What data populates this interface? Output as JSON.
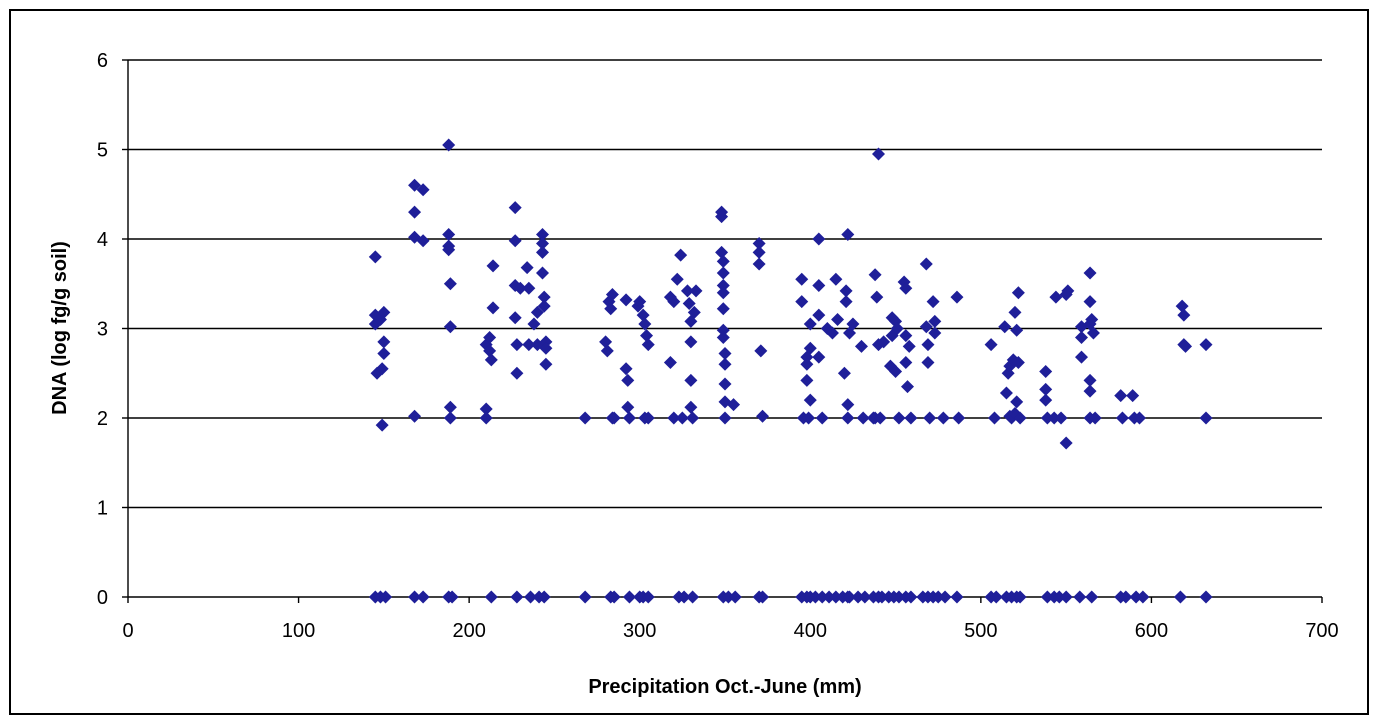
{
  "chart_data": {
    "type": "scatter",
    "title": "",
    "xlabel": "Precipitation Oct.-June (mm)",
    "ylabel": "DNA (log fg/g soil)",
    "xlim": [
      0,
      700
    ],
    "ylim": [
      0,
      6
    ],
    "x_ticks": [
      0,
      100,
      200,
      300,
      400,
      500,
      600,
      700
    ],
    "y_ticks": [
      0,
      1,
      2,
      3,
      4,
      5,
      6
    ],
    "grid": "horizontal",
    "legend": "none",
    "marker": "diamond",
    "marker_color": "#1f1f99",
    "series": [
      {
        "points": [
          [
            145,
            3.8
          ],
          [
            145,
            3.15
          ],
          [
            145,
            3.05
          ],
          [
            146,
            2.5
          ],
          [
            148,
            3.1
          ],
          [
            149,
            2.55
          ],
          [
            149,
            1.92
          ],
          [
            150,
            2.85
          ],
          [
            150,
            2.72
          ],
          [
            150,
            3.18
          ],
          [
            168,
            4.6
          ],
          [
            168,
            4.3
          ],
          [
            168,
            4.02
          ],
          [
            168,
            2.02
          ],
          [
            173,
            4.55
          ],
          [
            173,
            3.98
          ],
          [
            188,
            5.05
          ],
          [
            188,
            4.05
          ],
          [
            188,
            3.92
          ],
          [
            188,
            3.88
          ],
          [
            189,
            3.5
          ],
          [
            189,
            3.02
          ],
          [
            189,
            2.12
          ],
          [
            189,
            2.0
          ],
          [
            210,
            2.82
          ],
          [
            210,
            2.1
          ],
          [
            210,
            2.0
          ],
          [
            212,
            2.75
          ],
          [
            212,
            2.9
          ],
          [
            213,
            2.65
          ],
          [
            214,
            3.7
          ],
          [
            214,
            3.23
          ],
          [
            227,
            4.35
          ],
          [
            227,
            3.98
          ],
          [
            227,
            3.48
          ],
          [
            227,
            3.12
          ],
          [
            228,
            2.82
          ],
          [
            228,
            2.5
          ],
          [
            230,
            3.45
          ],
          [
            234,
            3.68
          ],
          [
            235,
            3.45
          ],
          [
            235,
            2.82
          ],
          [
            238,
            3.05
          ],
          [
            240,
            2.82
          ],
          [
            240,
            3.18
          ],
          [
            243,
            4.05
          ],
          [
            243,
            3.95
          ],
          [
            243,
            3.85
          ],
          [
            243,
            3.62
          ],
          [
            244,
            3.35
          ],
          [
            244,
            3.25
          ],
          [
            245,
            2.85
          ],
          [
            245,
            2.78
          ],
          [
            245,
            2.6
          ],
          [
            268,
            2.0
          ],
          [
            280,
            2.85
          ],
          [
            281,
            2.75
          ],
          [
            282,
            3.3
          ],
          [
            283,
            3.22
          ],
          [
            284,
            3.38
          ],
          [
            284,
            2.0
          ],
          [
            285,
            2.0
          ],
          [
            292,
            3.32
          ],
          [
            292,
            2.55
          ],
          [
            293,
            2.42
          ],
          [
            293,
            2.12
          ],
          [
            294,
            2.0
          ],
          [
            299,
            3.25
          ],
          [
            300,
            3.3
          ],
          [
            302,
            3.15
          ],
          [
            303,
            3.05
          ],
          [
            303,
            2.0
          ],
          [
            304,
            2.92
          ],
          [
            305,
            2.82
          ],
          [
            305,
            2.0
          ],
          [
            318,
            2.62
          ],
          [
            318,
            3.35
          ],
          [
            320,
            3.3
          ],
          [
            320,
            2.0
          ],
          [
            322,
            3.55
          ],
          [
            324,
            3.82
          ],
          [
            325,
            2.0
          ],
          [
            328,
            3.42
          ],
          [
            329,
            3.28
          ],
          [
            330,
            3.08
          ],
          [
            330,
            2.85
          ],
          [
            330,
            2.42
          ],
          [
            330,
            2.12
          ],
          [
            331,
            2.0
          ],
          [
            332,
            3.18
          ],
          [
            333,
            3.42
          ],
          [
            348,
            4.3
          ],
          [
            348,
            4.25
          ],
          [
            348,
            3.85
          ],
          [
            349,
            3.75
          ],
          [
            349,
            3.62
          ],
          [
            349,
            3.48
          ],
          [
            349,
            3.4
          ],
          [
            349,
            3.22
          ],
          [
            349,
            2.98
          ],
          [
            349,
            2.9
          ],
          [
            350,
            2.72
          ],
          [
            350,
            2.6
          ],
          [
            350,
            2.38
          ],
          [
            350,
            2.18
          ],
          [
            350,
            2.0
          ],
          [
            355,
            2.15
          ],
          [
            370,
            3.95
          ],
          [
            370,
            3.85
          ],
          [
            370,
            3.72
          ],
          [
            371,
            2.75
          ],
          [
            372,
            2.02
          ],
          [
            395,
            3.55
          ],
          [
            395,
            3.3
          ],
          [
            396,
            2.0
          ],
          [
            398,
            2.68
          ],
          [
            398,
            2.6
          ],
          [
            398,
            2.42
          ],
          [
            399,
            2.0
          ],
          [
            400,
            2.78
          ],
          [
            400,
            3.05
          ],
          [
            400,
            2.2
          ],
          [
            405,
            4.0
          ],
          [
            405,
            3.48
          ],
          [
            405,
            3.15
          ],
          [
            405,
            2.68
          ],
          [
            407,
            2.0
          ],
          [
            410,
            3.0
          ],
          [
            413,
            2.95
          ],
          [
            415,
            3.55
          ],
          [
            416,
            3.1
          ],
          [
            420,
            2.5
          ],
          [
            421,
            3.42
          ],
          [
            421,
            3.3
          ],
          [
            422,
            4.05
          ],
          [
            422,
            2.15
          ],
          [
            422,
            2.0
          ],
          [
            423,
            2.95
          ],
          [
            425,
            3.05
          ],
          [
            430,
            2.8
          ],
          [
            431,
            2.0
          ],
          [
            437,
            2.0
          ],
          [
            438,
            2.0
          ],
          [
            438,
            3.6
          ],
          [
            439,
            3.35
          ],
          [
            440,
            4.95
          ],
          [
            440,
            2.82
          ],
          [
            441,
            2.0
          ],
          [
            443,
            2.85
          ],
          [
            447,
            2.58
          ],
          [
            448,
            3.12
          ],
          [
            448,
            2.92
          ],
          [
            450,
            3.08
          ],
          [
            450,
            2.52
          ],
          [
            451,
            3.0
          ],
          [
            452,
            2.0
          ],
          [
            455,
            3.52
          ],
          [
            456,
            3.45
          ],
          [
            456,
            2.92
          ],
          [
            456,
            2.62
          ],
          [
            457,
            2.35
          ],
          [
            458,
            2.8
          ],
          [
            459,
            2.0
          ],
          [
            468,
            3.72
          ],
          [
            468,
            3.02
          ],
          [
            469,
            2.82
          ],
          [
            469,
            2.62
          ],
          [
            470,
            2.0
          ],
          [
            472,
            3.3
          ],
          [
            473,
            3.08
          ],
          [
            473,
            2.95
          ],
          [
            478,
            2.0
          ],
          [
            486,
            3.35
          ],
          [
            487,
            2.0
          ],
          [
            506,
            2.82
          ],
          [
            508,
            2.0
          ],
          [
            514,
            3.02
          ],
          [
            515,
            2.28
          ],
          [
            516,
            2.5
          ],
          [
            517,
            2.02
          ],
          [
            517,
            2.58
          ],
          [
            518,
            2.0
          ],
          [
            519,
            2.65
          ],
          [
            520,
            3.18
          ],
          [
            520,
            2.05
          ],
          [
            521,
            2.18
          ],
          [
            521,
            2.98
          ],
          [
            522,
            3.4
          ],
          [
            522,
            2.62
          ],
          [
            523,
            2.0
          ],
          [
            538,
            2.52
          ],
          [
            538,
            2.32
          ],
          [
            538,
            2.2
          ],
          [
            539,
            2.0
          ],
          [
            543,
            2.0
          ],
          [
            544,
            3.35
          ],
          [
            547,
            2.0
          ],
          [
            550,
            3.38
          ],
          [
            550,
            1.72
          ],
          [
            551,
            3.42
          ],
          [
            559,
            3.02
          ],
          [
            559,
            2.9
          ],
          [
            559,
            2.68
          ],
          [
            564,
            3.62
          ],
          [
            564,
            3.3
          ],
          [
            564,
            3.05
          ],
          [
            564,
            2.42
          ],
          [
            564,
            2.3
          ],
          [
            564,
            2.0
          ],
          [
            565,
            3.1
          ],
          [
            566,
            2.95
          ],
          [
            567,
            2.0
          ],
          [
            582,
            2.25
          ],
          [
            583,
            2.0
          ],
          [
            589,
            2.25
          ],
          [
            590,
            2.0
          ],
          [
            593,
            2.0
          ],
          [
            618,
            3.25
          ],
          [
            619,
            3.15
          ],
          [
            619,
            2.82
          ],
          [
            620,
            2.8
          ],
          [
            632,
            2.82
          ],
          [
            632,
            2.0
          ],
          [
            145,
            0
          ],
          [
            148,
            0
          ],
          [
            151,
            0
          ],
          [
            168,
            0
          ],
          [
            173,
            0
          ],
          [
            188,
            0
          ],
          [
            190,
            0
          ],
          [
            213,
            0
          ],
          [
            228,
            0
          ],
          [
            236,
            0
          ],
          [
            241,
            0
          ],
          [
            244,
            0
          ],
          [
            268,
            0
          ],
          [
            283,
            0
          ],
          [
            285,
            0
          ],
          [
            294,
            0
          ],
          [
            300,
            0
          ],
          [
            302,
            0
          ],
          [
            305,
            0
          ],
          [
            323,
            0
          ],
          [
            326,
            0
          ],
          [
            331,
            0
          ],
          [
            349,
            0
          ],
          [
            352,
            0
          ],
          [
            356,
            0
          ],
          [
            370,
            0
          ],
          [
            372,
            0
          ],
          [
            395,
            0
          ],
          [
            398,
            0
          ],
          [
            400,
            0
          ],
          [
            403,
            0
          ],
          [
            407,
            0
          ],
          [
            411,
            0
          ],
          [
            415,
            0
          ],
          [
            419,
            0
          ],
          [
            422,
            0
          ],
          [
            423,
            0
          ],
          [
            428,
            0
          ],
          [
            432,
            0
          ],
          [
            437,
            0
          ],
          [
            440,
            0
          ],
          [
            442,
            0
          ],
          [
            446,
            0
          ],
          [
            449,
            0
          ],
          [
            452,
            0
          ],
          [
            456,
            0
          ],
          [
            459,
            0
          ],
          [
            466,
            0
          ],
          [
            469,
            0
          ],
          [
            472,
            0
          ],
          [
            475,
            0
          ],
          [
            479,
            0
          ],
          [
            486,
            0
          ],
          [
            506,
            0
          ],
          [
            509,
            0
          ],
          [
            515,
            0
          ],
          [
            518,
            0
          ],
          [
            521,
            0
          ],
          [
            523,
            0
          ],
          [
            539,
            0
          ],
          [
            543,
            0
          ],
          [
            546,
            0
          ],
          [
            550,
            0
          ],
          [
            558,
            0
          ],
          [
            565,
            0
          ],
          [
            582,
            0
          ],
          [
            585,
            0
          ],
          [
            591,
            0
          ],
          [
            595,
            0
          ],
          [
            617,
            0
          ],
          [
            632,
            0
          ]
        ]
      }
    ]
  }
}
